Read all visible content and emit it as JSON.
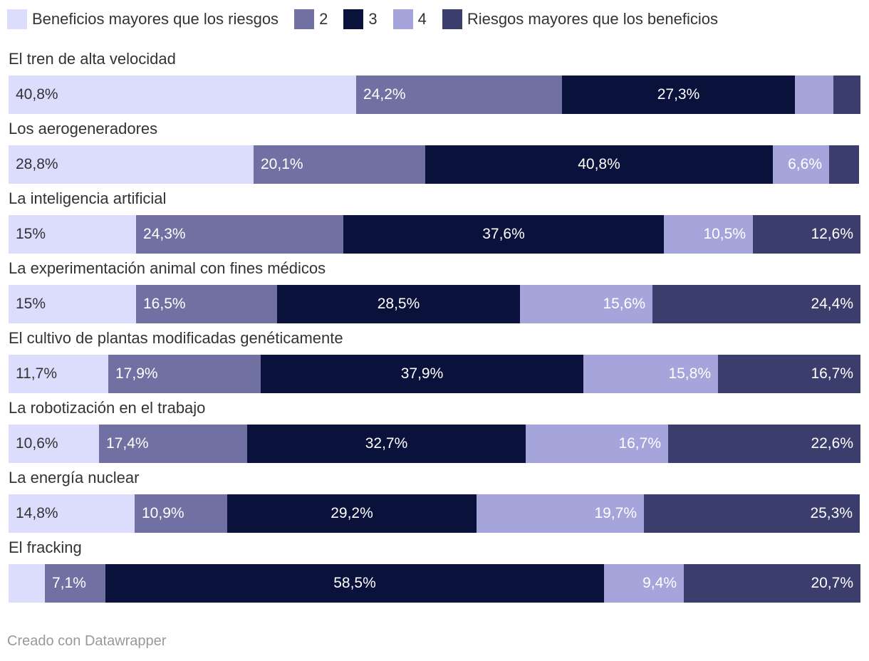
{
  "chart_data": {
    "type": "bar",
    "orientation": "horizontal",
    "stacked": true,
    "legend_placement": "top-left",
    "grid": false,
    "legend": [
      {
        "name": "Beneficios mayores que los riesgos",
        "color": "#dcdcfc"
      },
      {
        "name": "2",
        "color": "#7070a2"
      },
      {
        "name": "3",
        "color": "#0a113b"
      },
      {
        "name": "4",
        "color": "#a5a5dc"
      },
      {
        "name": "Riesgos mayores que los beneficios",
        "color": "#3b3d6c"
      }
    ],
    "categories": [
      "El tren de alta velocidad",
      "Los aerogeneradores",
      "La inteligencia artificial",
      "La experimentación animal con fines médicos",
      "El cultivo de plantas modificadas genéticamente",
      "La robotización en el trabajo",
      "La energía nuclear",
      "El fracking"
    ],
    "series": [
      {
        "name": "Beneficios mayores que los riesgos",
        "values": [
          40.8,
          28.8,
          15,
          15,
          11.7,
          10.6,
          14.8,
          4.3
        ],
        "labels": [
          "40,8%",
          "28,8%",
          "15%",
          "15%",
          "11,7%",
          "10,6%",
          "14,8%",
          ""
        ]
      },
      {
        "name": "2",
        "values": [
          24.2,
          20.1,
          24.3,
          16.5,
          17.9,
          17.4,
          10.9,
          7.1
        ],
        "labels": [
          "24,2%",
          "20,1%",
          "24,3%",
          "16,5%",
          "17,9%",
          "17,4%",
          "10,9%",
          "7,1%"
        ]
      },
      {
        "name": "3",
        "values": [
          27.3,
          40.8,
          37.6,
          28.5,
          37.9,
          32.7,
          29.2,
          58.5
        ],
        "labels": [
          "27,3%",
          "40,8%",
          "37,6%",
          "28,5%",
          "37,9%",
          "32,7%",
          "29,2%",
          "58,5%"
        ]
      },
      {
        "name": "4",
        "values": [
          4.5,
          6.6,
          10.5,
          15.6,
          15.8,
          16.7,
          19.7,
          9.4
        ],
        "labels": [
          "",
          "6,6%",
          "10,5%",
          "15,6%",
          "15,8%",
          "16,7%",
          "19,7%",
          "9,4%"
        ]
      },
      {
        "name": "Riesgos mayores que los beneficios",
        "values": [
          3.2,
          3.5,
          12.6,
          24.4,
          16.7,
          22.6,
          25.3,
          20.7
        ],
        "labels": [
          "",
          "",
          "12,6%",
          "24,4%",
          "16,7%",
          "22,6%",
          "25,3%",
          "20,7%"
        ]
      }
    ],
    "label_colors": [
      "#333333",
      "#ffffff",
      "#ffffff",
      "#ffffff",
      "#ffffff"
    ],
    "label_align": [
      "left",
      "left",
      "center",
      "right",
      "right"
    ],
    "xlim": [
      0,
      100
    ]
  },
  "footer": "Creado con Datawrapper"
}
